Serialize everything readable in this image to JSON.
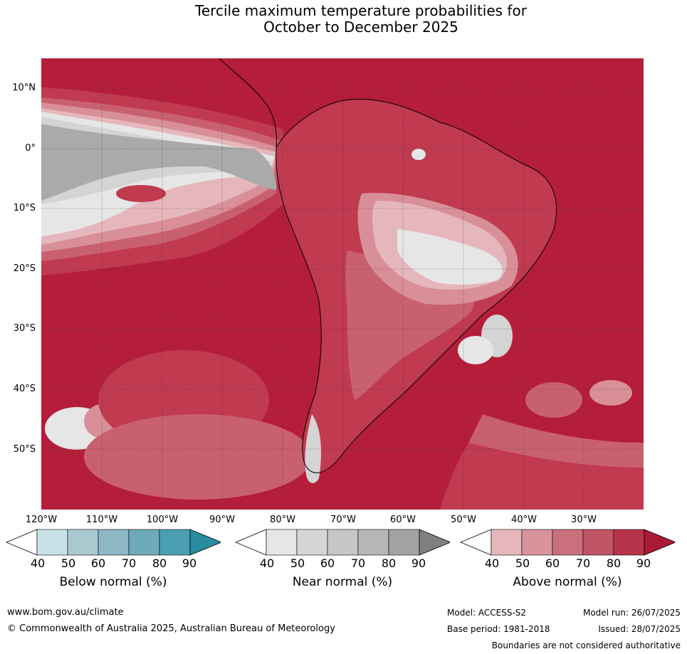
{
  "title": {
    "line1": "Tercile maximum temperature probabilities for",
    "line2": "October to December 2025"
  },
  "map": {
    "lat_labels": [
      "10°N",
      "0°",
      "10°S",
      "20°S",
      "30°S",
      "40°S",
      "50°S"
    ],
    "lon_labels": [
      "120°W",
      "110°W",
      "100°W",
      "90°W",
      "80°W",
      "70°W",
      "60°W",
      "50°W",
      "40°W",
      "30°W"
    ],
    "colors": {
      "ocean_above_90": "#b41e3a",
      "above_80": "#c03a50",
      "above_70": "#c96070",
      "above_60": "#d88f98",
      "above_50": "#e5b7bc",
      "near_40": "#e6e6e6",
      "near_50": "#d4d4d4",
      "near_60": "#aaaaaa"
    }
  },
  "legend": {
    "ticks": [
      "40",
      "50",
      "60",
      "70",
      "80",
      "90"
    ],
    "below": {
      "title": "Below normal (%)",
      "colors": [
        "#ffffff",
        "#c8e1e7",
        "#a9c9d0",
        "#8cb7c3",
        "#6eabba",
        "#4aa0b1",
        "#2a8c9f"
      ]
    },
    "near": {
      "title": "Near normal (%)",
      "colors": [
        "#ffffff",
        "#e6e6e6",
        "#d6d6d6",
        "#c6c6c6",
        "#b6b6b6",
        "#a3a3a3",
        "#808080"
      ]
    },
    "above": {
      "title": "Above normal (%)",
      "colors": [
        "#ffffff",
        "#e5b7bc",
        "#d8939c",
        "#c9707c",
        "#c05566",
        "#b8344a",
        "#aa1a36"
      ]
    }
  },
  "footer": {
    "url": "www.bom.gov.au/climate",
    "copyright": "© Commonwealth of Australia 2025, Australian Bureau of Meteorology",
    "model": "Model: ACCESS-S2",
    "base_period": "Base period: 1981-2018",
    "model_run": "Model run: 26/07/2025",
    "issued": "Issued: 28/07/2025",
    "disclaimer": "Boundaries are not considered authoritative"
  }
}
